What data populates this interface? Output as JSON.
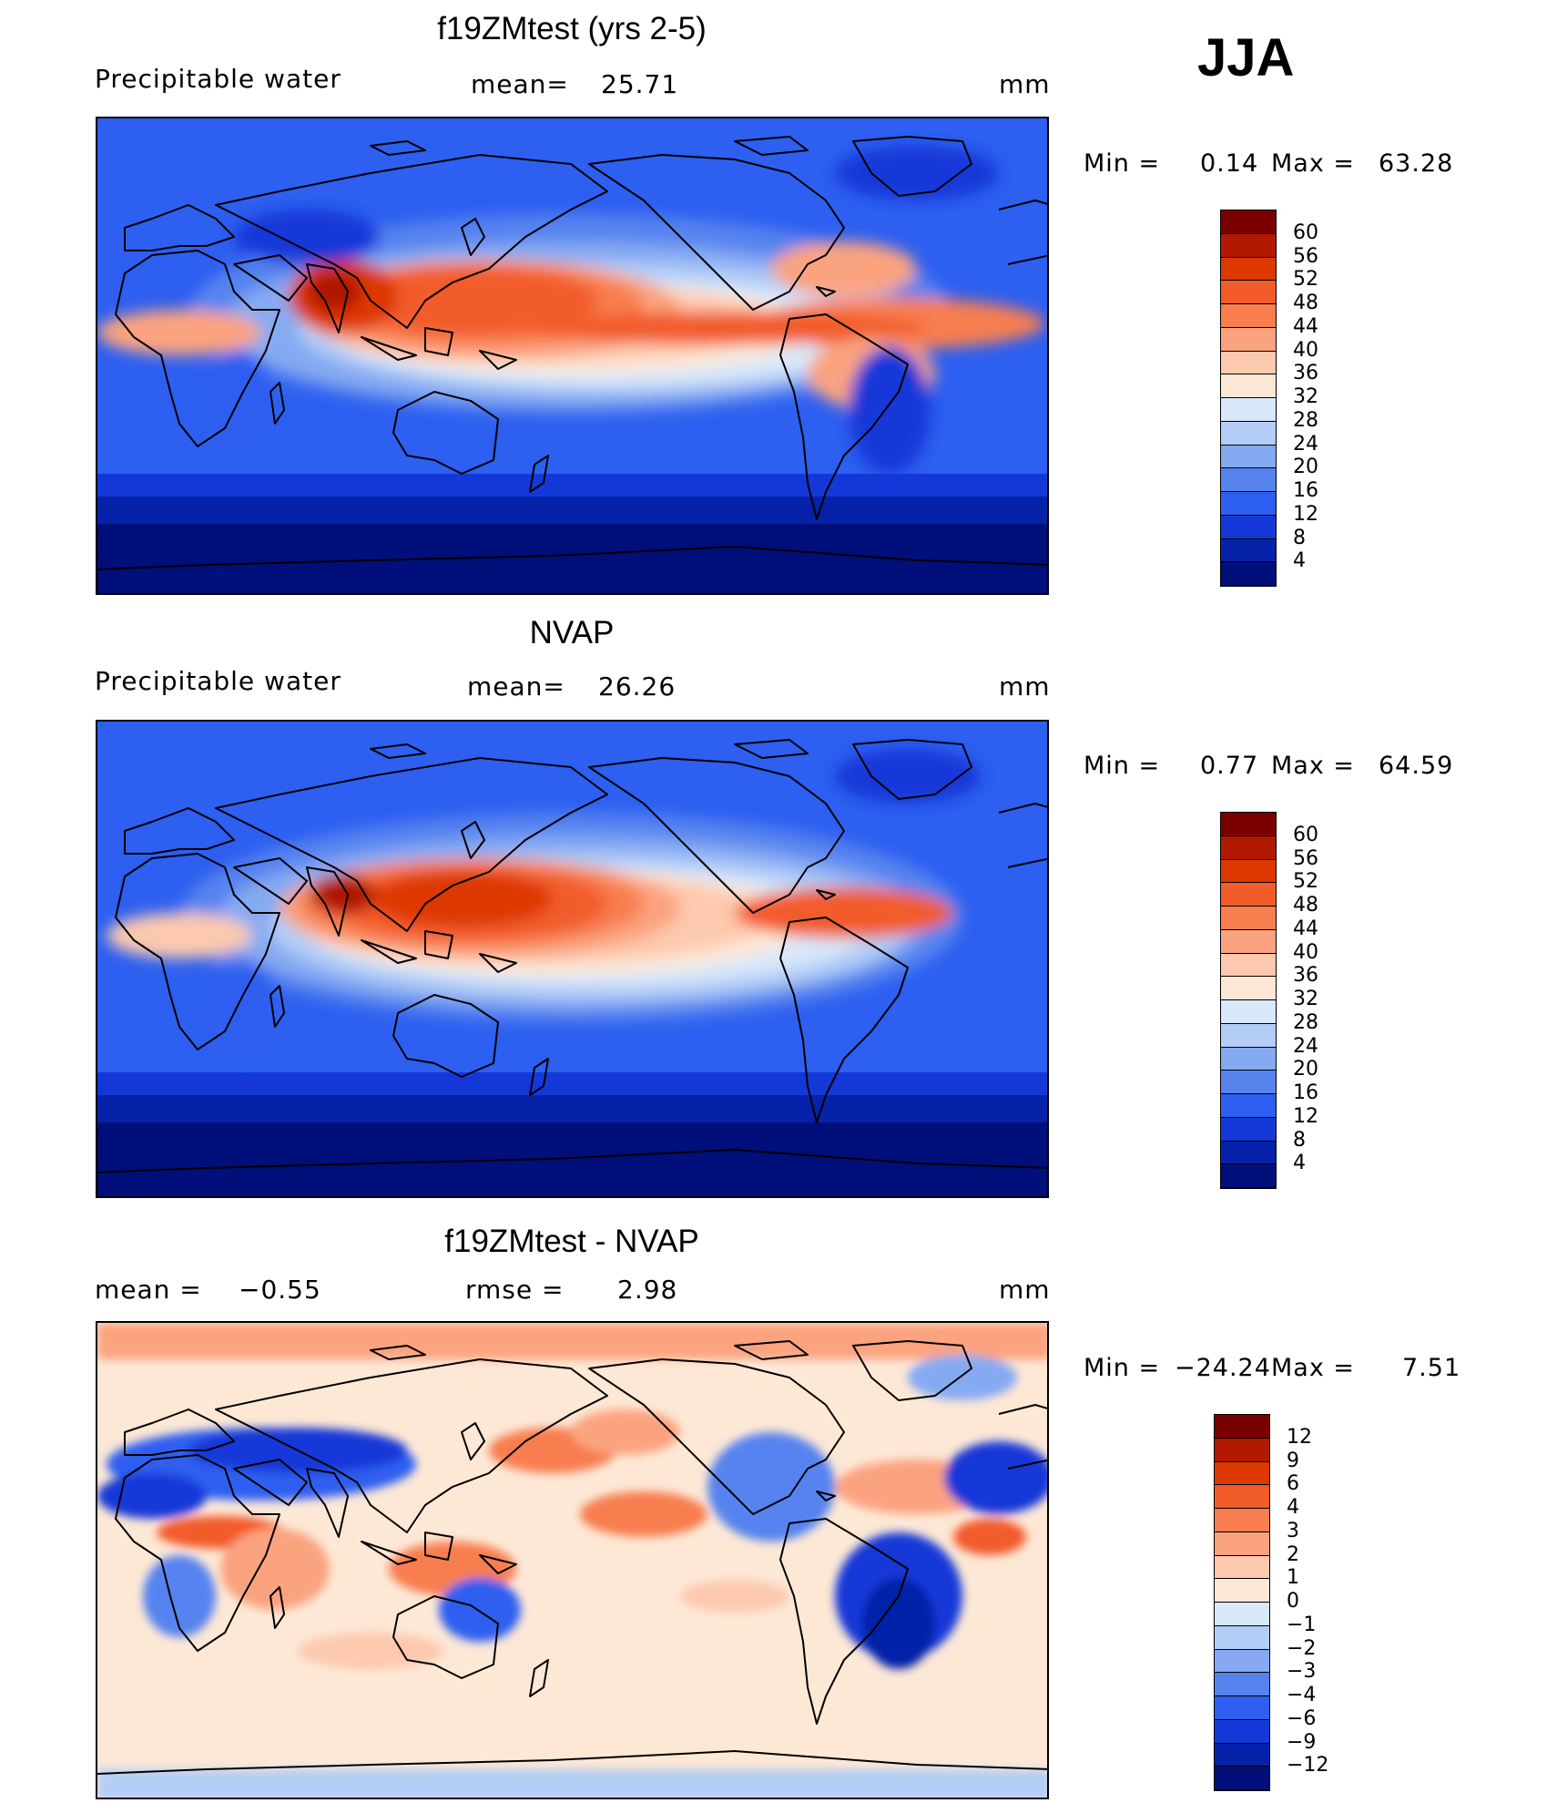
{
  "season": "JJA",
  "panels": [
    {
      "id": "model",
      "title": "f19ZMtest (yrs 2-5)",
      "left_label": "Precipitable water",
      "center_label": "mean=",
      "center_value": "25.71",
      "units": "mm",
      "min_label": "Min =",
      "min_value": "0.14",
      "max_label": "Max =",
      "max_value": "63.28",
      "colorbar": {
        "labels": [
          "60",
          "56",
          "52",
          "48",
          "44",
          "40",
          "36",
          "32",
          "28",
          "24",
          "20",
          "16",
          "12",
          "8",
          "4"
        ],
        "colors": [
          "#7a0000",
          "#b01800",
          "#dd3800",
          "#f25c2a",
          "#f87e50",
          "#fba37f",
          "#fdc9ae",
          "#fde8d6",
          "#d9e8fa",
          "#b3cdf7",
          "#86aaf2",
          "#5783ef",
          "#2d5ff0",
          "#1438d8",
          "#0622a8",
          "#000f7a"
        ]
      }
    },
    {
      "id": "obs",
      "title": "NVAP",
      "left_label": "Precipitable water",
      "center_label": "mean=",
      "center_value": "26.26",
      "units": "mm",
      "min_label": "Min =",
      "min_value": "0.77",
      "max_label": "Max =",
      "max_value": "64.59",
      "colorbar": {
        "labels": [
          "60",
          "56",
          "52",
          "48",
          "44",
          "40",
          "36",
          "32",
          "28",
          "24",
          "20",
          "16",
          "12",
          "8",
          "4"
        ],
        "colors": [
          "#7a0000",
          "#b01800",
          "#dd3800",
          "#f25c2a",
          "#f87e50",
          "#fba37f",
          "#fdc9ae",
          "#fde8d6",
          "#d9e8fa",
          "#b3cdf7",
          "#86aaf2",
          "#5783ef",
          "#2d5ff0",
          "#1438d8",
          "#0622a8",
          "#000f7a"
        ]
      }
    },
    {
      "id": "diff",
      "title": "f19ZMtest - NVAP",
      "left_label": "mean =",
      "left_value": "−0.55",
      "center_label": "rmse =",
      "center_value": "2.98",
      "units": "mm",
      "min_label": "Min =",
      "min_value": "−24.24",
      "max_label": "Max =",
      "max_value": "7.51",
      "colorbar": {
        "labels": [
          "12",
          "9",
          "6",
          "4",
          "3",
          "2",
          "1",
          "0",
          "−1",
          "−2",
          "−3",
          "−4",
          "−6",
          "−9",
          "−12"
        ],
        "colors": [
          "#7a0000",
          "#b01800",
          "#dd3800",
          "#f25c2a",
          "#f87e50",
          "#fba37f",
          "#fdc9ae",
          "#fde8d6",
          "#d9e8fa",
          "#b3cdf7",
          "#86aaf2",
          "#5783ef",
          "#2d5ff0",
          "#1438d8",
          "#0622a8",
          "#000f7a"
        ]
      }
    }
  ]
}
